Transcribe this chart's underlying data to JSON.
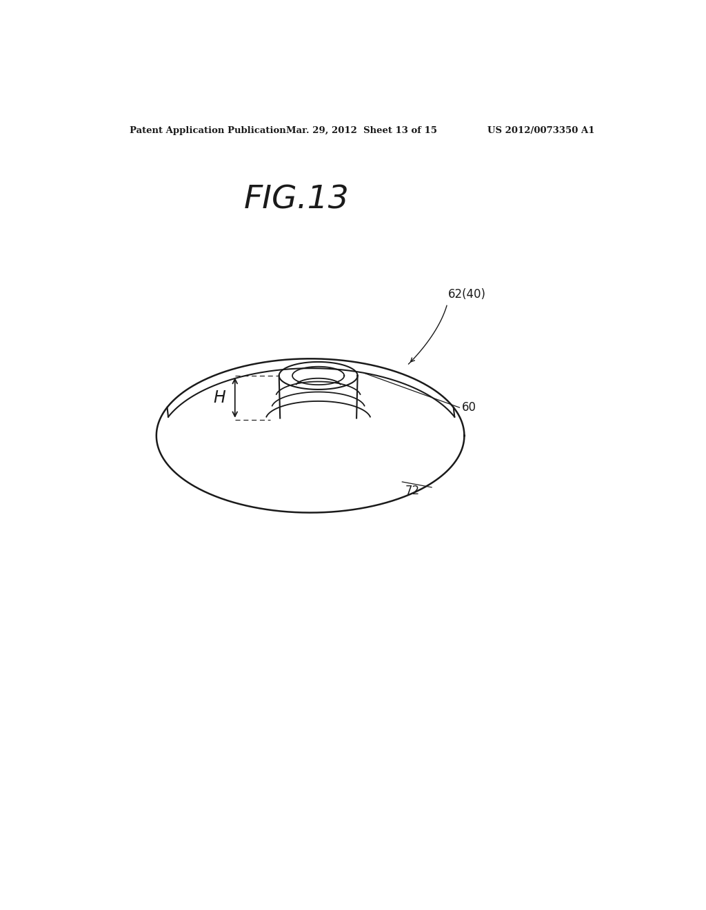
{
  "background_color": "#ffffff",
  "header_left": "Patent Application Publication",
  "header_center": "Mar. 29, 2012  Sheet 13 of 15",
  "header_right": "US 2012/0073350 A1",
  "figure_label": "FIG.13",
  "labels": {
    "62_40": "62(40)",
    "60": "60",
    "72": "72",
    "H": "H"
  },
  "line_color": "#1a1a1a",
  "line_width": 1.5
}
